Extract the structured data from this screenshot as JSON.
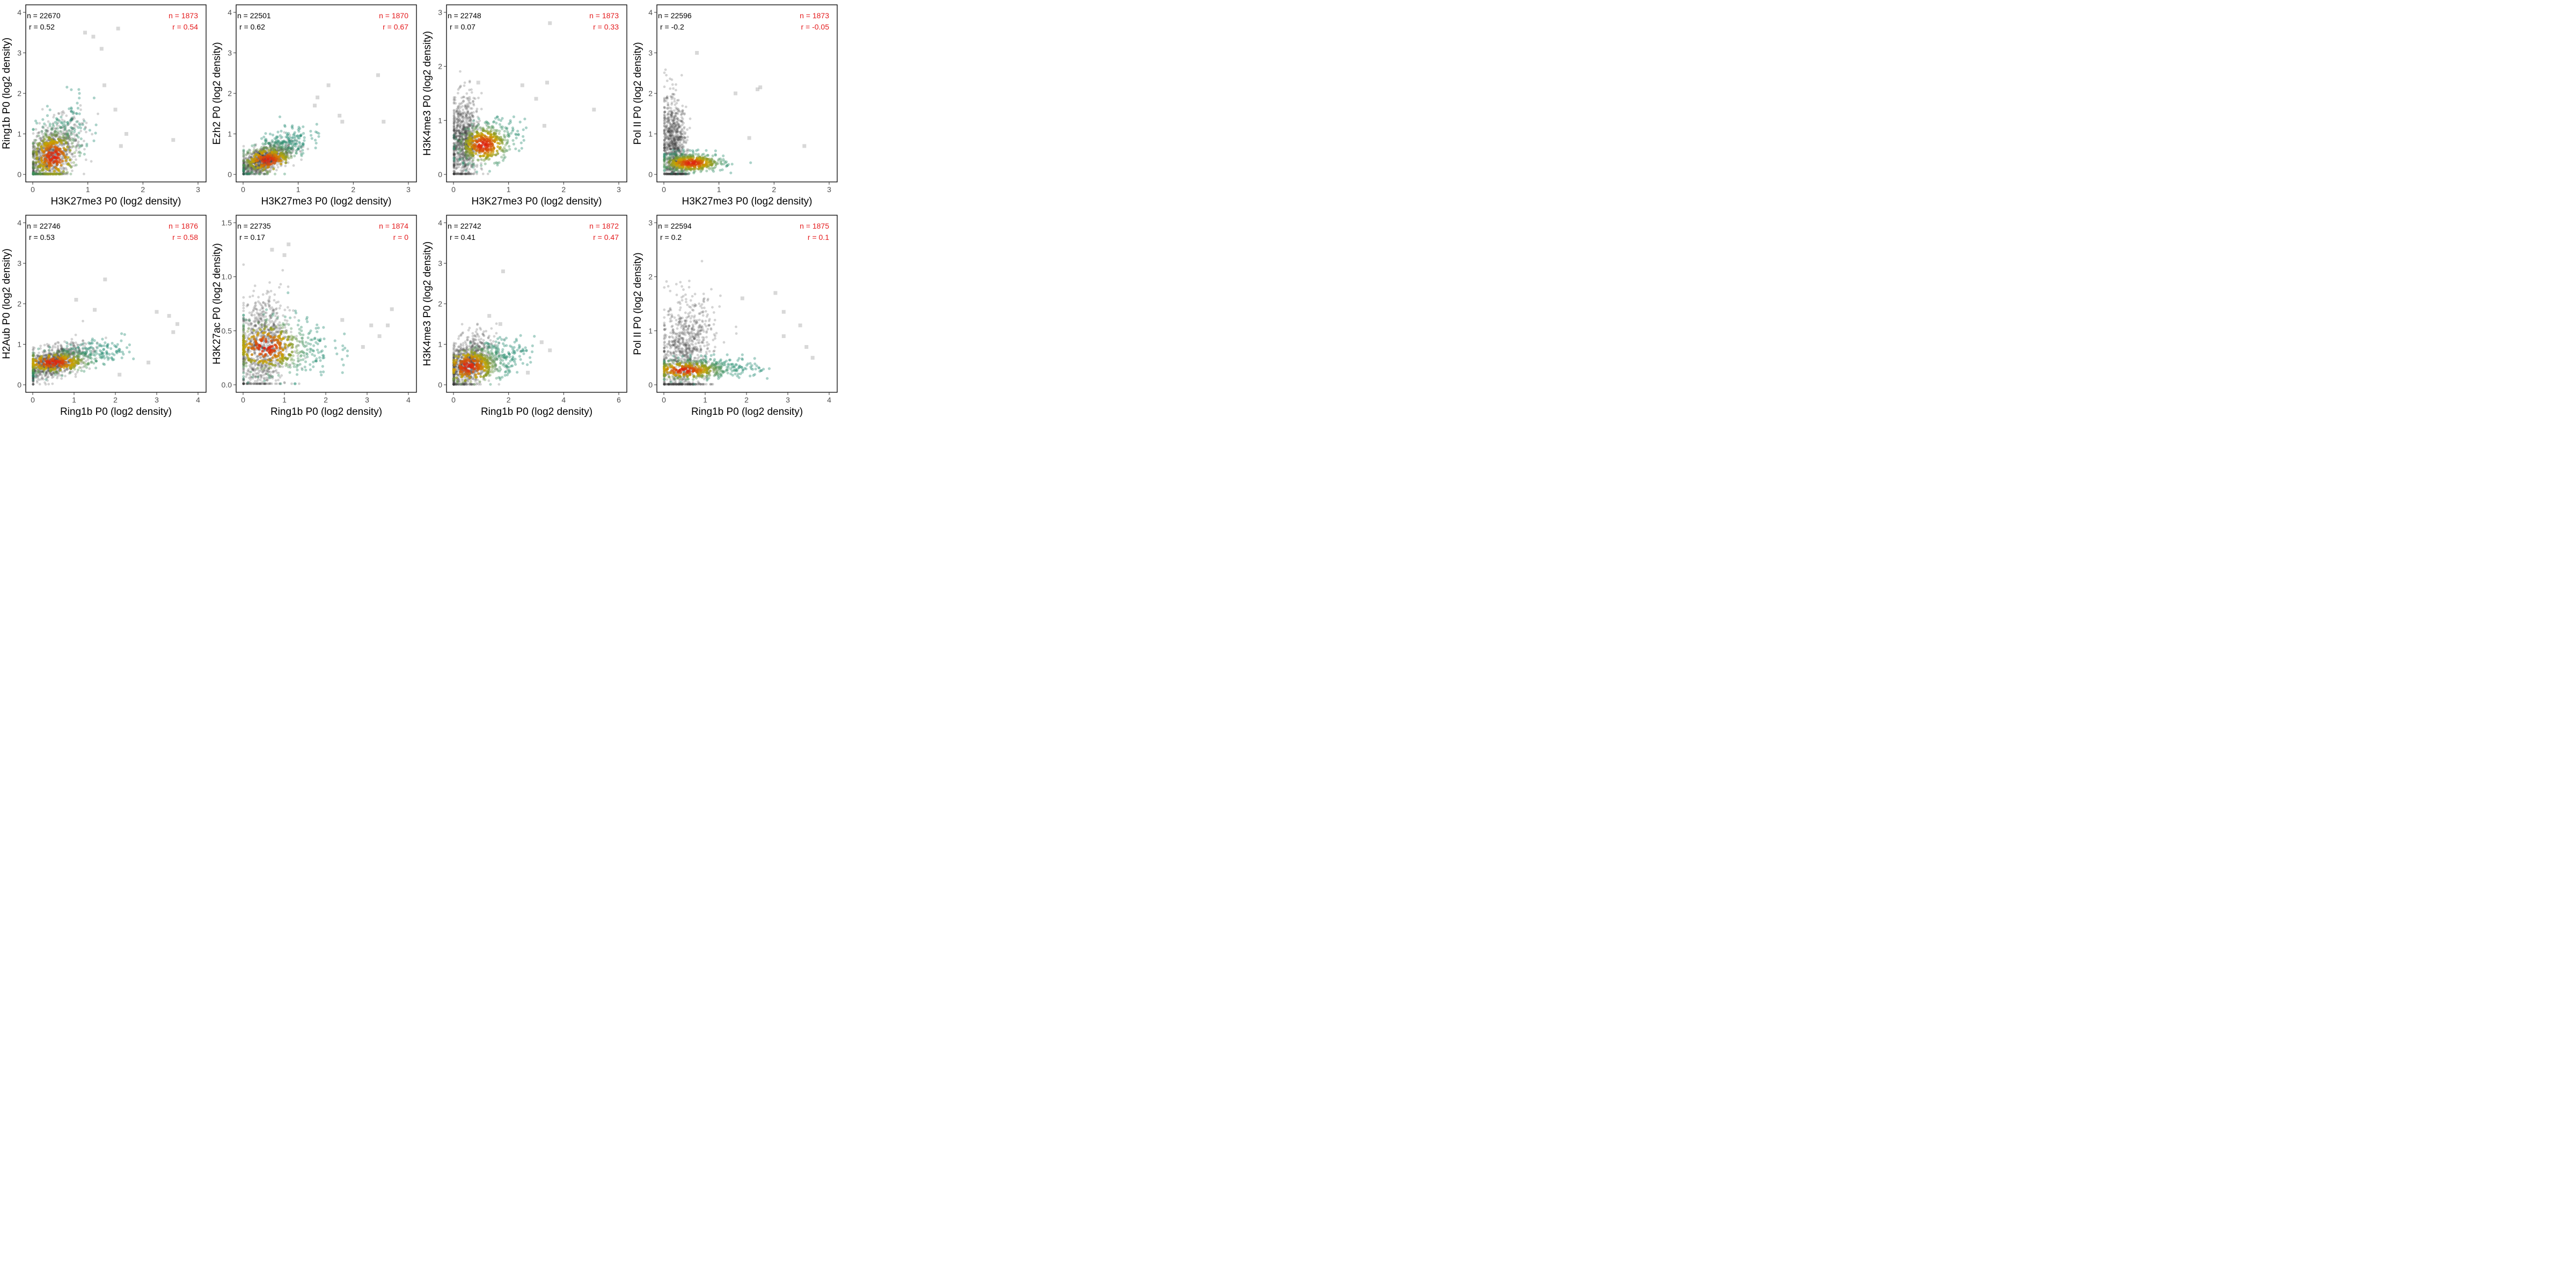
{
  "colors": {
    "black_stat": "#000000",
    "red_stat": "#e41a1c",
    "background_points": "#3a3a3a",
    "outlier_points": "#b8b8b8",
    "density_low": "#1f8a70",
    "density_mid": "#c8a500",
    "density_high": "#e02010",
    "panel_border": "#000000"
  },
  "chart_data": [
    {
      "type": "scatter",
      "xlabel": "H3K27me3 P0 (log2 density)",
      "ylabel": "Ring1b P0 (log2 density)",
      "xlim": [
        0,
        3
      ],
      "ylim": [
        0,
        4
      ],
      "xticks": [
        "0",
        "1",
        "2",
        "3"
      ],
      "yticks": [
        "0",
        "1",
        "2",
        "3",
        "4"
      ],
      "n_all": "n = 22670",
      "r_all": "r = 0.52",
      "n_sub": "n = 1873",
      "r_sub": "r = 0.54",
      "cloud": {
        "cx": 0.3,
        "cy": 0.45,
        "sx": 0.28,
        "sy": 0.45,
        "rho": 0.52
      },
      "sub": {
        "cx": 0.38,
        "cy": 0.55,
        "sx": 0.28,
        "sy": 0.55,
        "rho": 0.54
      },
      "hot": {
        "cx": 0.38,
        "cy": 0.45,
        "sx": 0.13,
        "sy": 0.18
      },
      "outliers": [
        [
          0.95,
          3.5
        ],
        [
          1.1,
          3.4
        ],
        [
          1.25,
          3.1
        ],
        [
          1.55,
          3.6
        ],
        [
          1.5,
          1.6
        ],
        [
          1.7,
          1.0
        ],
        [
          1.6,
          0.7
        ],
        [
          2.55,
          0.85
        ],
        [
          1.3,
          2.2
        ]
      ]
    },
    {
      "type": "scatter",
      "xlabel": "H3K27me3 P0 (log2 density)",
      "ylabel": "Ezh2 P0 (log2 density)",
      "xlim": [
        0,
        3
      ],
      "ylim": [
        0,
        4
      ],
      "xticks": [
        "0",
        "1",
        "2",
        "3"
      ],
      "yticks": [
        "0",
        "1",
        "2",
        "3",
        "4"
      ],
      "n_all": "n = 22501",
      "r_all": "r = 0.62",
      "n_sub": "n = 1870",
      "r_sub": "r = 0.67",
      "cloud": {
        "cx": 0.35,
        "cy": 0.35,
        "sx": 0.25,
        "sy": 0.22,
        "rho": 0.62
      },
      "sub": {
        "cx": 0.55,
        "cy": 0.55,
        "sx": 0.32,
        "sy": 0.3,
        "rho": 0.67
      },
      "hot": {
        "cx": 0.45,
        "cy": 0.35,
        "sx": 0.14,
        "sy": 0.1
      },
      "outliers": [
        [
          2.45,
          2.45
        ],
        [
          1.55,
          2.2
        ],
        [
          1.35,
          1.9
        ],
        [
          1.75,
          1.45
        ],
        [
          2.55,
          1.3
        ],
        [
          1.8,
          1.3
        ],
        [
          1.3,
          1.7
        ]
      ]
    },
    {
      "type": "scatter",
      "xlabel": "H3K27me3 P0 (log2 density)",
      "ylabel": "H3K4me3 P0 (log2 density)",
      "xlim": [
        0,
        3
      ],
      "ylim": [
        0,
        3
      ],
      "xticks": [
        "0",
        "1",
        "2",
        "3"
      ],
      "yticks": [
        "0",
        "1",
        "2",
        "3"
      ],
      "n_all": "n = 22748",
      "r_all": "r = 0.07",
      "n_sub": "n = 1873",
      "r_sub": "r = 0.33",
      "cloud": {
        "cx": 0.18,
        "cy": 0.6,
        "sx": 0.14,
        "sy": 0.4,
        "rho": 0.07
      },
      "sub": {
        "cx": 0.6,
        "cy": 0.6,
        "sx": 0.28,
        "sy": 0.2,
        "rho": 0.33
      },
      "hot": {
        "cx": 0.55,
        "cy": 0.55,
        "sx": 0.13,
        "sy": 0.1
      },
      "outliers": [
        [
          1.75,
          2.8
        ],
        [
          1.7,
          1.7
        ],
        [
          1.25,
          1.65
        ],
        [
          1.5,
          1.4
        ],
        [
          2.55,
          1.2
        ],
        [
          1.65,
          0.9
        ],
        [
          0.45,
          1.7
        ]
      ]
    },
    {
      "type": "scatter",
      "xlabel": "H3K27me3 P0 (log2 density)",
      "ylabel": "Pol II P0 (log2 density)",
      "xlim": [
        0,
        3
      ],
      "ylim": [
        0,
        4
      ],
      "xticks": [
        "0",
        "1",
        "2",
        "3"
      ],
      "yticks": [
        "0",
        "1",
        "2",
        "3",
        "4"
      ],
      "n_all": "n = 22596",
      "r_all": "r = -0.2",
      "n_sub": "n = 1873",
      "r_sub": "r = -0.05",
      "cloud": {
        "cx": 0.18,
        "cy": 0.65,
        "sx": 0.12,
        "sy": 0.6,
        "rho": -0.2
      },
      "sub": {
        "cx": 0.5,
        "cy": 0.3,
        "sx": 0.3,
        "sy": 0.12,
        "rho": -0.05
      },
      "hot": {
        "cx": 0.5,
        "cy": 0.28,
        "sx": 0.15,
        "sy": 0.06
      },
      "outliers": [
        [
          1.75,
          2.15
        ],
        [
          1.7,
          2.1
        ],
        [
          1.55,
          0.9
        ],
        [
          2.55,
          0.7
        ],
        [
          1.3,
          2.0
        ],
        [
          0.6,
          3.0
        ]
      ]
    },
    {
      "type": "scatter",
      "xlabel": "Ring1b P0 (log2 density)",
      "ylabel": "H2Aub P0 (log2 density)",
      "xlim": [
        0,
        4
      ],
      "ylim": [
        0,
        4
      ],
      "xticks": [
        "0",
        "1",
        "2",
        "3",
        "4"
      ],
      "yticks": [
        "0",
        "1",
        "2",
        "3",
        "4"
      ],
      "n_all": "n = 22746",
      "r_all": "r = 0.53",
      "n_sub": "n = 1876",
      "r_sub": "r = 0.58",
      "cloud": {
        "cx": 0.45,
        "cy": 0.55,
        "sx": 0.4,
        "sy": 0.22,
        "rho": 0.53
      },
      "sub": {
        "cx": 0.9,
        "cy": 0.65,
        "sx": 0.65,
        "sy": 0.2,
        "rho": 0.58
      },
      "hot": {
        "cx": 0.5,
        "cy": 0.55,
        "sx": 0.25,
        "sy": 0.08
      },
      "outliers": [
        [
          1.75,
          2.6
        ],
        [
          1.05,
          2.1
        ],
        [
          3.5,
          1.5
        ],
        [
          3.3,
          1.7
        ],
        [
          3.0,
          1.8
        ],
        [
          3.4,
          1.3
        ],
        [
          2.8,
          0.55
        ],
        [
          1.5,
          1.85
        ],
        [
          2.1,
          0.25
        ]
      ]
    },
    {
      "type": "scatter",
      "xlabel": "Ring1b P0 (log2 density)",
      "ylabel": "H3K27ac P0 (log2 density)",
      "xlim": [
        0,
        4
      ],
      "ylim": [
        0,
        1.5
      ],
      "xticks": [
        "0",
        "1",
        "2",
        "3",
        "4"
      ],
      "yticks": [
        "0.0",
        "0.5",
        "1.0",
        "1.5"
      ],
      "yvals": [
        0,
        0.5,
        1.0,
        1.5
      ],
      "n_all": "n = 22735",
      "r_all": "r = 0.17",
      "n_sub": "n = 1874",
      "r_sub": "r = 0",
      "cloud": {
        "cx": 0.45,
        "cy": 0.35,
        "sx": 0.32,
        "sy": 0.24,
        "rho": 0.17
      },
      "sub": {
        "cx": 0.85,
        "cy": 0.35,
        "sx": 0.65,
        "sy": 0.14,
        "rho": 0.0
      },
      "hot": {
        "cx": 0.55,
        "cy": 0.35,
        "sx": 0.25,
        "sy": 0.07
      },
      "outliers": [
        [
          3.6,
          0.7
        ],
        [
          3.5,
          0.55
        ],
        [
          3.3,
          0.45
        ],
        [
          3.1,
          0.55
        ],
        [
          2.9,
          0.35
        ],
        [
          2.4,
          0.6
        ],
        [
          1.0,
          1.2
        ],
        [
          1.1,
          1.3
        ],
        [
          0.7,
          1.25
        ]
      ]
    },
    {
      "type": "scatter",
      "xlabel": "Ring1b P0 (log2 density)",
      "ylabel": "H3K4me3 P0 (log2 density)",
      "xlim": [
        0,
        6
      ],
      "ylim": [
        0,
        4
      ],
      "xticks": [
        "0",
        "2",
        "4",
        "6"
      ],
      "yticks": [
        "0",
        "1",
        "2",
        "3",
        "4"
      ],
      "xvals": [
        0,
        2,
        4,
        6
      ],
      "n_all": "n = 22742",
      "r_all": "r = 0.41",
      "n_sub": "n = 1872",
      "r_sub": "r = 0.47",
      "cloud": {
        "cx": 0.5,
        "cy": 0.5,
        "sx": 0.45,
        "sy": 0.35,
        "rho": 0.41
      },
      "sub": {
        "cx": 1.2,
        "cy": 0.6,
        "sx": 0.7,
        "sy": 0.25,
        "rho": 0.47
      },
      "hot": {
        "cx": 0.55,
        "cy": 0.45,
        "sx": 0.3,
        "sy": 0.14
      },
      "outliers": [
        [
          1.8,
          2.8
        ],
        [
          3.5,
          0.85
        ],
        [
          3.2,
          1.05
        ],
        [
          1.3,
          1.7
        ],
        [
          2.7,
          0.3
        ],
        [
          1.7,
          1.5
        ]
      ]
    },
    {
      "type": "scatter",
      "xlabel": "Ring1b P0 (log2 density)",
      "ylabel": "Pol II P0 (log2 density)",
      "xlim": [
        0,
        4
      ],
      "ylim": [
        0,
        3
      ],
      "xticks": [
        "0",
        "1",
        "2",
        "3",
        "4"
      ],
      "yticks": [
        "0",
        "1",
        "2",
        "3"
      ],
      "n_all": "n = 22594",
      "r_all": "r = 0.2",
      "n_sub": "n = 1875",
      "r_sub": "r = 0.1",
      "cloud": {
        "cx": 0.5,
        "cy": 0.55,
        "sx": 0.35,
        "sy": 0.5,
        "rho": 0.2
      },
      "sub": {
        "cx": 0.95,
        "cy": 0.3,
        "sx": 0.65,
        "sy": 0.1,
        "rho": 0.1
      },
      "hot": {
        "cx": 0.5,
        "cy": 0.27,
        "sx": 0.25,
        "sy": 0.05
      },
      "outliers": [
        [
          2.7,
          1.7
        ],
        [
          2.9,
          1.35
        ],
        [
          3.3,
          1.1
        ],
        [
          3.45,
          0.7
        ],
        [
          3.6,
          0.5
        ],
        [
          1.9,
          1.6
        ],
        [
          2.9,
          0.9
        ]
      ]
    }
  ]
}
